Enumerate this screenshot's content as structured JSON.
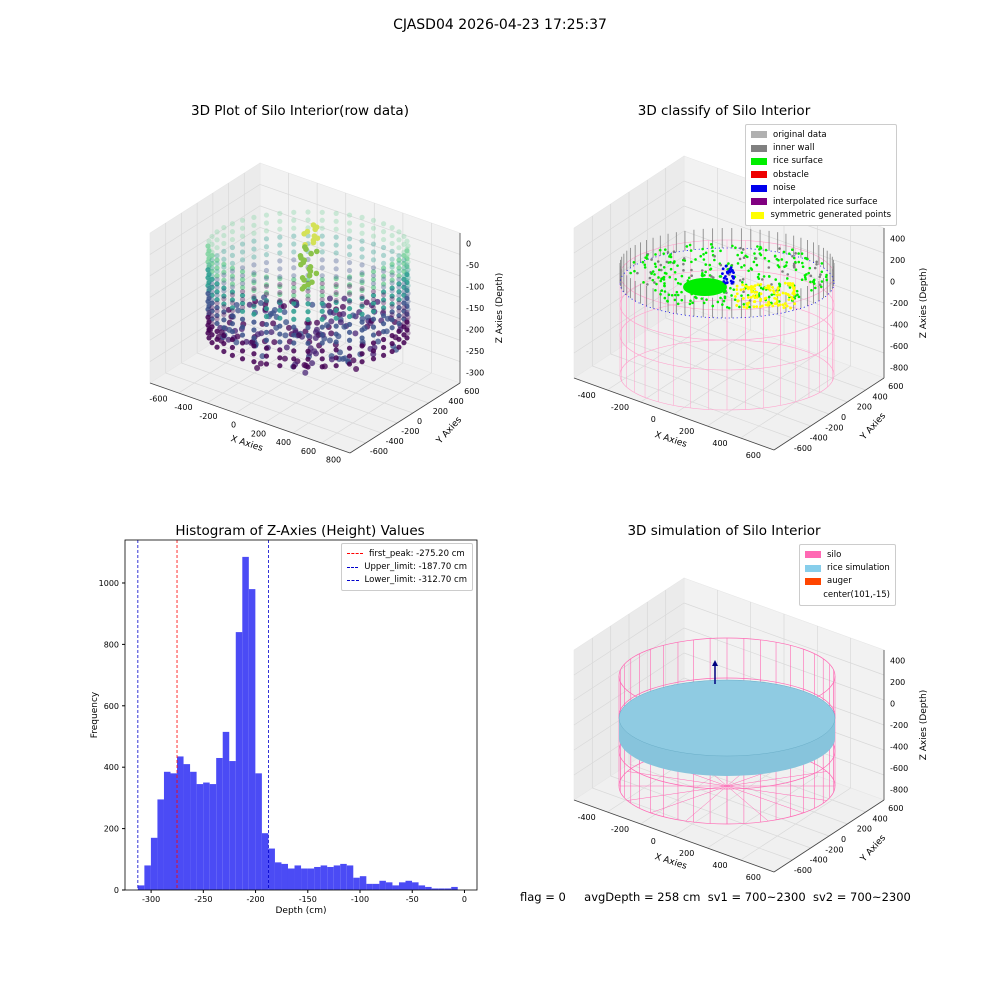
{
  "suptitle": "CJASD04 2026-04-23 17:25:37",
  "panels": {
    "p1": {
      "title": "3D Plot of Silo Interior(row data)",
      "xlabel": "X Axies",
      "ylabel": "Y Axies",
      "zlabel": "Z Axies (Depth)",
      "xticks": [
        "-600",
        "-400",
        "-200",
        "0",
        "200",
        "400",
        "600",
        "800"
      ],
      "yticks": [
        "-600",
        "-400",
        "-200",
        "0",
        "200",
        "400",
        "600"
      ],
      "zticks": [
        "0",
        "-50",
        "-100",
        "-150",
        "-200",
        "-250",
        "-300"
      ]
    },
    "p2": {
      "title": "3D classify of Silo Interior",
      "xlabel": "X Axies",
      "ylabel": "Y Axies",
      "zlabel": "Z Axies (Depth)",
      "xticks": [
        "-400",
        "-200",
        "0",
        "200",
        "400",
        "600"
      ],
      "yticks": [
        "-600",
        "-400",
        "-200",
        "0",
        "200",
        "400",
        "600"
      ],
      "zticks": [
        "400",
        "200",
        "0",
        "-200",
        "-400",
        "-600",
        "-800"
      ],
      "legend": [
        {
          "label": "original data",
          "color": "#b0b0b0"
        },
        {
          "label": "inner wall",
          "color": "#808080"
        },
        {
          "label": "rice surface",
          "color": "#00ee00"
        },
        {
          "label": "obstacle",
          "color": "#ee0000"
        },
        {
          "label": "noise",
          "color": "#0000ee"
        },
        {
          "label": "interpolated rice surface",
          "color": "#800080"
        },
        {
          "label": "symmetric generated points",
          "color": "#ffff00"
        }
      ]
    },
    "p3": {
      "title": "Histogram of Z-Axies (Height) Values",
      "legend": [
        {
          "label": "first_peak: -275.20 cm",
          "color": "#ff0000"
        },
        {
          "label": "Upper_limit: -187.70 cm",
          "color": "#0000cc"
        },
        {
          "label": "Lower_limit: -312.70 cm",
          "color": "#0000cc"
        }
      ]
    },
    "p4": {
      "title": "3D simulation of Silo Interior",
      "xlabel": "X Axies",
      "ylabel": "Y Axies",
      "zlabel": "Z Axies (Depth)",
      "xticks": [
        "-400",
        "-200",
        "0",
        "200",
        "400",
        "600"
      ],
      "yticks": [
        "-600",
        "-400",
        "-200",
        "0",
        "200",
        "400",
        "600"
      ],
      "zticks": [
        "400",
        "200",
        "0",
        "-200",
        "-400",
        "-600",
        "-800"
      ],
      "legend": [
        {
          "label": "silo",
          "color": "#ff69b4"
        },
        {
          "label": "rice simulation",
          "color": "#87ceeb"
        },
        {
          "label": "auger",
          "color": "#ff4500"
        },
        {
          "label": "center(101,-15)",
          "color": ""
        }
      ]
    }
  },
  "status": {
    "flag": "flag = 0",
    "avg": "avgDepth = 258 cm",
    "sv1": "sv1 = 700~2300",
    "sv2": "sv2 = 700~2300"
  },
  "chart_data": {
    "type": "bar",
    "title": "Histogram of Z-Axies (Height) Values",
    "xlabel": "Depth (cm)",
    "ylabel": "Frequency",
    "xlim": [
      -325,
      12
    ],
    "ylim": [
      0,
      1140
    ],
    "xticks": [
      -300,
      -250,
      -200,
      -150,
      -100,
      -50,
      0
    ],
    "yticks": [
      0,
      200,
      400,
      600,
      800,
      1000
    ],
    "bin_width": 6.25,
    "bin_start": -312.7,
    "values": [
      15,
      80,
      170,
      295,
      385,
      380,
      435,
      410,
      385,
      345,
      350,
      345,
      430,
      515,
      420,
      840,
      1085,
      980,
      380,
      185,
      135,
      90,
      85,
      70,
      80,
      70,
      70,
      75,
      80,
      75,
      80,
      85,
      80,
      40,
      45,
      20,
      20,
      30,
      25,
      15,
      25,
      30,
      25,
      15,
      10,
      5,
      5,
      5,
      10
    ],
    "color": "#4b4bf5",
    "vlines": [
      {
        "label": "first_peak: -275.20 cm",
        "x": -275.2,
        "color": "#ff0000"
      },
      {
        "label": "Upper_limit: -187.70 cm",
        "x": -187.7,
        "color": "#0000cc"
      },
      {
        "label": "Lower_limit: -312.70 cm",
        "x": -312.7,
        "color": "#0000cc"
      }
    ]
  }
}
